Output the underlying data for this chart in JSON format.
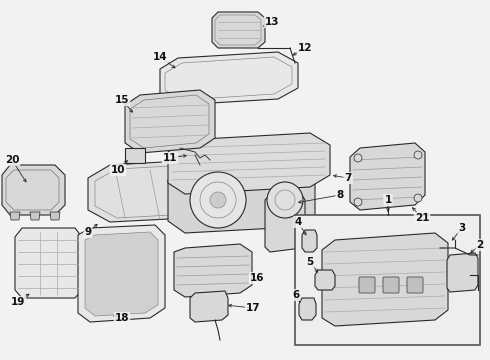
{
  "bg_color": "#f2f2f2",
  "line_color": "#2a2a2a",
  "part_line_color": "#3a3a3a",
  "fill_light": "#e8e8e8",
  "fill_mid": "#d8d8d8",
  "fill_dark": "#c8c8c8",
  "inset_bg": "#f0f0f0",
  "lw_main": 0.8,
  "lw_thin": 0.5,
  "label_fs": 7.5
}
